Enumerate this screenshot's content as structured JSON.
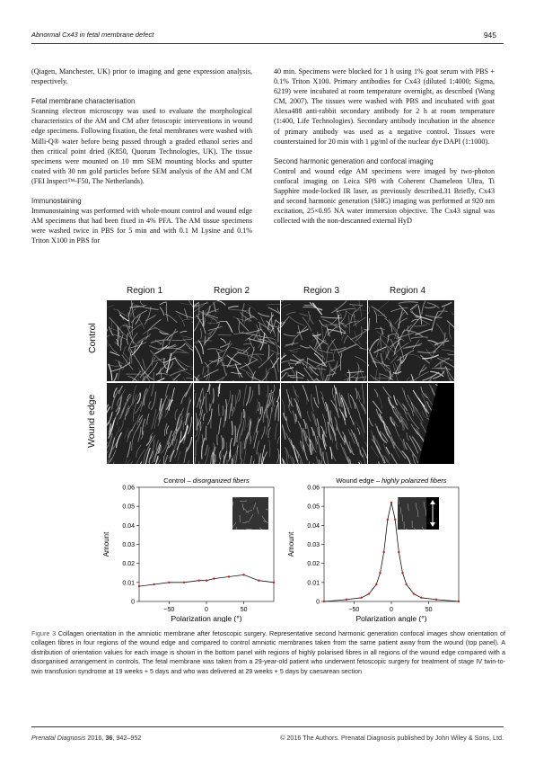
{
  "header": {
    "running_title": "Abnormal Cx43 in fetal membrane defect",
    "page_number": "945"
  },
  "left_column": {
    "p1": "(Qiagen, Manchester, UK) prior to imaging and gene expression analysis, respectively.",
    "h1": "Fetal membrane characterisation",
    "p2": "Scanning electron microscopy was used to evaluate the morphological characteristics of the AM and CM after fetoscopic interventions in wound edge specimens. Following fixation, the fetal membranes were washed with Milli-Q® water before being passed through a graded ethanol series and then critical point dried (K850, Quorum Technologies, UK). The tissue specimens were mounted on 10 mm SEM mounting blocks and sputter coated with 30 nm gold particles before SEM analysis of the AM and CM (FEI Inspect™-F50, The Netherlands).",
    "h2": "Immunostaining",
    "p3": "Immunostaining was performed with whole-mount control and wound edge AM specimens that had been fixed in 4% PFA. The AM tissue specimens were washed twice in PBS for 5 min and with 0.1 M Lysine and 0.1% Triton X100 in PBS for"
  },
  "right_column": {
    "p1": "40 min. Specimens were blocked for 1 h using 1% goat serum with PBS + 0.1% Triton X100. Primary antibodies for Cx43 (diluted 1:4000; Sigma, 6219) were incubated at room temperature overnight, as described (Wang CM, 2007). The tissues were washed with PBS and incubated with goat Alexa488 anti-rabbit secondary antibody for 2 h at room temperature (1:400, Life Technologies). Secondary antibody incubation in the absence of primary antibody was used as a negative control. Tissues were counterstained for 20 min with 1 μg/ml of the nuclear dye DAPI (1:1000).",
    "h1": "Second harmonic generation and confocal imaging",
    "p2": "Control and wound edge AM specimens were imaged by two-photon confocal imaging on Leica SP8 with Coherent Chameleon Ultra, Ti Sapphire mode-locked IR laser, as previously described.31 Briefly, Cx43 and second harmonic generation (SHG) imaging was performed at 920 nm excitation, 25×0.95 NA water immersion objective. The Cx43 signal was collected with the non-descanned external HyD"
  },
  "figure": {
    "regions": [
      "Region 1",
      "Region 2",
      "Region 3",
      "Region 4"
    ],
    "rows": [
      "Control",
      "Wound edge"
    ],
    "charts": {
      "control_title_prefix": "Control – ",
      "control_title_em": "disorganized fibers",
      "wound_title_prefix": "Wound edge – ",
      "wound_title_em": "highly polarized fibers",
      "ylabel": "Amount",
      "xlabel": "Polarization angle (°)",
      "yticks": [
        "0",
        "0.01",
        "0.02",
        "0.03",
        "0.04",
        "0.05",
        "0.06"
      ],
      "xticks": [
        "−50",
        "0",
        "50"
      ]
    },
    "caption_label": "Figure 3",
    "caption": "Collagen orientation in the amniotic membrane after fetoscopic surgery. Representative second harmonic generation confocal images show orientation of collagen fibres in four regions of the wound edge and compared to control amniotic membranes taken from the same patient away from the wound (top panel). A distribution of orientation values for each image is shown in the bottom panel with regions of highly polarised fibres in all regions of the wound edge compared with a disorganised arrangement in controls. The fetal membrane was taken from a 29-year-old patient who underwent fetoscopic surgery for treatment of stage IV twin-to-twin transfusion syndrome at 19 weeks + 5 days and who was delivered at 29 weeks + 5 days by caesarean section"
  },
  "chart_data": [
    {
      "type": "line",
      "title": "Control – disorganized fibers",
      "xlabel": "Polarization angle (°)",
      "ylabel": "Amount",
      "xlim": [
        -90,
        90
      ],
      "ylim": [
        0,
        0.06
      ],
      "x": [
        -90,
        -70,
        -50,
        -30,
        -10,
        0,
        10,
        30,
        50,
        70,
        90
      ],
      "series": [
        {
          "values": [
            0.008,
            0.009,
            0.01,
            0.01,
            0.011,
            0.011,
            0.012,
            0.013,
            0.014,
            0.011,
            0.01
          ]
        }
      ]
    },
    {
      "type": "line",
      "title": "Wound edge – highly polarized fibers",
      "xlabel": "Polarization angle (°)",
      "ylabel": "Amount",
      "xlim": [
        -90,
        90
      ],
      "ylim": [
        0,
        0.06
      ],
      "x": [
        -90,
        -60,
        -40,
        -30,
        -20,
        -15,
        -10,
        -5,
        0,
        5,
        10,
        15,
        20,
        30,
        40,
        60,
        90
      ],
      "series": [
        {
          "values": [
            0.0,
            0.001,
            0.002,
            0.004,
            0.009,
            0.015,
            0.026,
            0.043,
            0.052,
            0.043,
            0.026,
            0.015,
            0.009,
            0.004,
            0.002,
            0.001,
            0.0
          ]
        }
      ]
    }
  ],
  "footer": {
    "journal": "Prenatal Diagnosis",
    "year_vol": "2016,",
    "volume": "36",
    "pages": ", 942–952",
    "copyright": "© 2016 The Authors. Prenatal Diagnosis published by John Wiley & Sons, Ltd."
  }
}
